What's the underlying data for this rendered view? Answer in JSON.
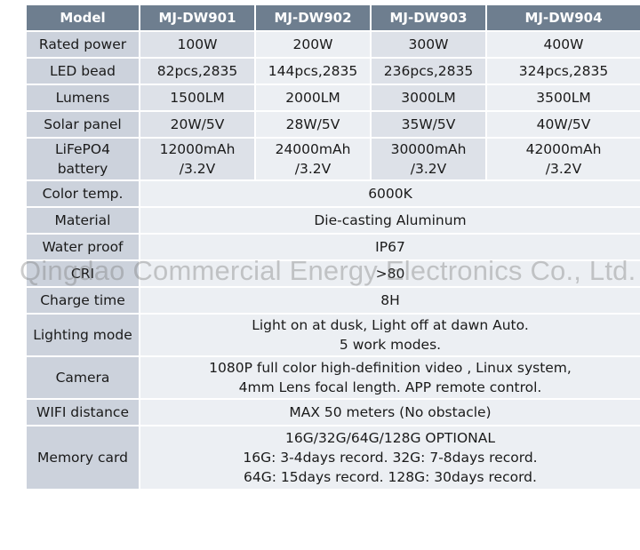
{
  "header": [
    "Model",
    "MJ-DW901",
    "MJ-DW902",
    "MJ-DW903",
    "MJ-DW904"
  ],
  "rows": [
    {
      "label": [
        "Rated power"
      ],
      "values": [
        [
          "100W"
        ],
        [
          "200W"
        ],
        [
          "300W"
        ],
        [
          "400W"
        ]
      ]
    },
    {
      "label": [
        "LED bead"
      ],
      "values": [
        [
          "82pcs,2835"
        ],
        [
          "144pcs,2835"
        ],
        [
          "236pcs,2835"
        ],
        [
          "324pcs,2835"
        ]
      ]
    },
    {
      "label": [
        "Lumens"
      ],
      "values": [
        [
          "1500LM"
        ],
        [
          "2000LM"
        ],
        [
          "3000LM"
        ],
        [
          "3500LM"
        ]
      ]
    },
    {
      "label": [
        "Solar panel"
      ],
      "values": [
        [
          "20W/5V"
        ],
        [
          "28W/5V"
        ],
        [
          "35W/5V"
        ],
        [
          "40W/5V"
        ]
      ]
    },
    {
      "label": [
        "LiFePO4",
        "battery"
      ],
      "values": [
        [
          "12000mAh",
          "/3.2V"
        ],
        [
          "24000mAh",
          "/3.2V"
        ],
        [
          "30000mAh",
          "/3.2V"
        ],
        [
          "42000mAh",
          "/3.2V"
        ]
      ]
    },
    {
      "label": [
        "Color temp."
      ],
      "span": [
        "6000K"
      ]
    },
    {
      "label": [
        "Material"
      ],
      "span": [
        "Die-casting Aluminum"
      ]
    },
    {
      "label": [
        "Water proof"
      ],
      "span": [
        "IP67"
      ]
    },
    {
      "label": [
        "CRI"
      ],
      "span": [
        ">80"
      ]
    },
    {
      "label": [
        "Charge time"
      ],
      "span": [
        "8H"
      ]
    },
    {
      "label": [
        "Lighting mode"
      ],
      "span": [
        "Light on at dusk, Light off at dawn Auto.",
        "5 work modes."
      ]
    },
    {
      "label": [
        "Camera"
      ],
      "span": [
        "1080P full color high-definition video , Linux system,",
        "4mm Lens focal length. APP remote control."
      ]
    },
    {
      "label": [
        "WIFI distance"
      ],
      "span": [
        "MAX 50 meters (No obstacle)"
      ]
    },
    {
      "label": [
        "Memory card"
      ],
      "span": [
        "16G/32G/64G/128G OPTIONAL",
        "16G: 3-4days record. 32G: 7-8days record.",
        "64G: 15days record. 128G: 30days record."
      ]
    }
  ],
  "watermark": "Qingdao Commercial Energy Electronics Co., Ltd."
}
